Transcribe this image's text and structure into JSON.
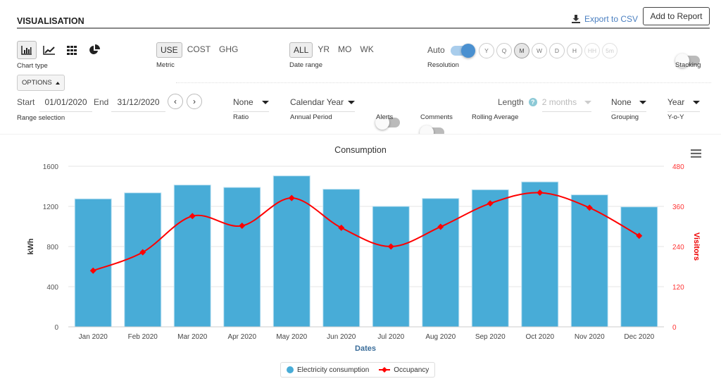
{
  "header": {
    "title": "VISUALISATION",
    "export_label": "Export to CSV",
    "add_report_label": "Add to Report"
  },
  "chart_type": {
    "label": "Chart type",
    "options": [
      "bar-chart-icon",
      "line-chart-icon",
      "grid-icon",
      "pie-chart-icon"
    ],
    "selected": "bar-chart-icon"
  },
  "metric": {
    "label": "Metric",
    "options": [
      "USE",
      "COST",
      "GHG"
    ],
    "selected": "USE"
  },
  "date_range": {
    "label": "Date range",
    "options": [
      "ALL",
      "YR",
      "MO",
      "WK"
    ],
    "selected": "ALL"
  },
  "resolution": {
    "label": "Resolution",
    "auto_label": "Auto",
    "auto_on": true,
    "options": [
      "Y",
      "Q",
      "M",
      "W",
      "D",
      "H",
      "HH",
      "5m"
    ],
    "selected": "M",
    "disabled": [
      "HH",
      "5m"
    ]
  },
  "stacking": {
    "label": "Stacking",
    "on": false
  },
  "options_button": "OPTIONS",
  "range": {
    "start_label": "Start",
    "start": "01/01/2020",
    "end_label": "End",
    "end": "31/12/2020",
    "label": "Range selection"
  },
  "ratio": {
    "value": "None",
    "label": "Ratio"
  },
  "annual_period": {
    "value": "Calendar Year",
    "label": "Annual Period"
  },
  "alerts": {
    "label": "Alerts",
    "on": false
  },
  "comments": {
    "label": "Comments",
    "on": false
  },
  "rolling": {
    "label": "Rolling Average",
    "length_label": "Length",
    "length_value": "2 months",
    "on": false
  },
  "grouping": {
    "value": "None",
    "label": "Grouping"
  },
  "yoy": {
    "value": "Year",
    "label": "Y-o-Y"
  },
  "colors": {
    "bar": "#48acd7",
    "line": "#ff0000",
    "accent": "#4a90d0"
  },
  "chart_data": {
    "type": "bar+line",
    "title": "Consumption",
    "xlabel": "Dates",
    "ylabel": "kWh",
    "y2label": "Visitors",
    "categories": [
      "Jan 2020",
      "Feb 2020",
      "Mar 2020",
      "Apr 2020",
      "May 2020",
      "Jun 2020",
      "Jul 2020",
      "Aug 2020",
      "Sep 2020",
      "Oct 2020",
      "Nov 2020",
      "Dec 2020"
    ],
    "ylim": [
      0,
      1600
    ],
    "yticks": [
      "0",
      "400",
      "800",
      "1200",
      "1600"
    ],
    "y2lim": [
      0,
      480
    ],
    "y2ticks": [
      "0",
      "120",
      "240",
      "360",
      "480"
    ],
    "grid": true,
    "legend": "bottom",
    "series": [
      {
        "name": "Electricity consumption",
        "type": "bar",
        "axis": "left",
        "values": [
          1275,
          1335,
          1413,
          1389,
          1504,
          1371,
          1200,
          1279,
          1366,
          1444,
          1315,
          1195
        ]
      },
      {
        "name": "Occupancy",
        "type": "line",
        "axis": "right",
        "values": [
          168,
          223,
          331,
          302,
          385,
          296,
          240,
          299,
          369,
          401,
          356,
          272
        ]
      }
    ]
  }
}
